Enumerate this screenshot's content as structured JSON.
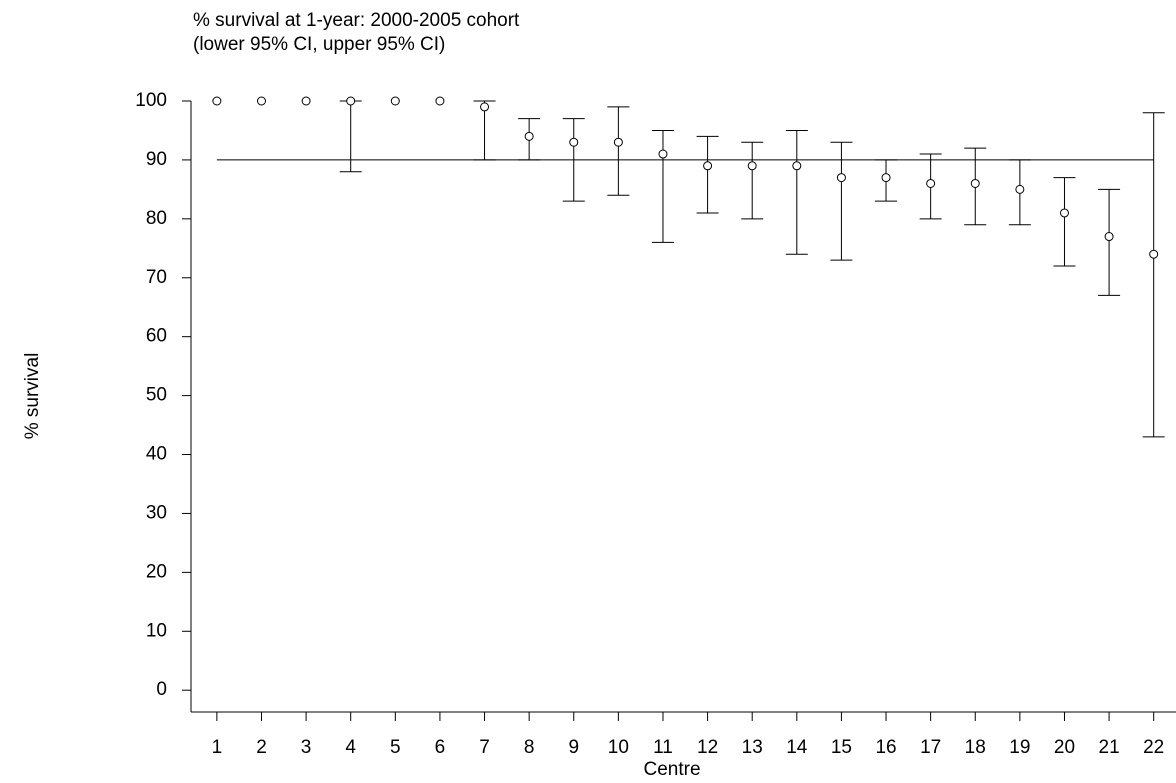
{
  "chart_data": {
    "type": "errorbar",
    "title": "% survival at 1-year: 2000-2005 cohort",
    "subtitle": "(lower 95% CI, upper 95% CI)",
    "x_label": "Centre",
    "y_label": "% survival",
    "x": [
      1,
      2,
      3,
      4,
      5,
      6,
      7,
      8,
      9,
      10,
      11,
      12,
      13,
      14,
      15,
      16,
      17,
      18,
      19,
      20,
      21,
      22
    ],
    "values": [
      100,
      100,
      100,
      100,
      100,
      100,
      99,
      94,
      93,
      93,
      91,
      89,
      89,
      89,
      87,
      87,
      86,
      86,
      85,
      81,
      77,
      74
    ],
    "lower": [
      null,
      null,
      null,
      88,
      null,
      null,
      90,
      90,
      83,
      84,
      76,
      81,
      80,
      74,
      73,
      83,
      80,
      79,
      79,
      72,
      67,
      43
    ],
    "upper": [
      null,
      null,
      null,
      100,
      null,
      null,
      100,
      97,
      97,
      99,
      95,
      94,
      93,
      95,
      93,
      90,
      91,
      92,
      90,
      87,
      85,
      98
    ],
    "reference_line": 90,
    "color": "#000000",
    "xlim": [
      0.42,
      22.5
    ],
    "ylim": [
      -3.7,
      100
    ],
    "xticks": [
      1,
      2,
      3,
      4,
      5,
      6,
      7,
      8,
      9,
      10,
      11,
      12,
      13,
      14,
      15,
      16,
      17,
      18,
      19,
      20,
      21,
      22
    ],
    "yticks": [
      0,
      10,
      20,
      30,
      40,
      50,
      60,
      70,
      80,
      90,
      100
    ]
  }
}
